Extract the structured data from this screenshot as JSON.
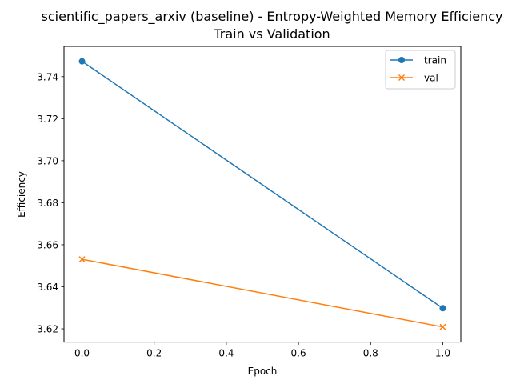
{
  "chart_data": {
    "type": "line",
    "title_line1": "scientific_papers_arxiv (baseline) - Entropy-Weighted Memory Efficiency",
    "title_line2": "Train vs Validation",
    "xlabel": "Epoch",
    "ylabel": "Efficiency",
    "xlim": [
      -0.05,
      1.05
    ],
    "ylim": [
      3.6137,
      3.7544
    ],
    "x_ticks": [
      0.0,
      0.2,
      0.4,
      0.6,
      0.8,
      1.0
    ],
    "x_tick_labels": [
      "0.0",
      "0.2",
      "0.4",
      "0.6",
      "0.8",
      "1.0"
    ],
    "y_ticks": [
      3.62,
      3.64,
      3.66,
      3.68,
      3.7,
      3.72,
      3.74
    ],
    "y_tick_labels": [
      "3.62",
      "3.64",
      "3.66",
      "3.68",
      "3.70",
      "3.72",
      "3.74"
    ],
    "grid": false,
    "legend_position": "top-right",
    "series": [
      {
        "name": "train",
        "color": "#1f77b4",
        "marker": "circle",
        "x": [
          0,
          1
        ],
        "values": [
          3.7473,
          3.6298
        ]
      },
      {
        "name": "val",
        "color": "#ff7f0e",
        "marker": "x",
        "x": [
          0,
          1
        ],
        "values": [
          3.6531,
          3.6209
        ]
      }
    ]
  }
}
